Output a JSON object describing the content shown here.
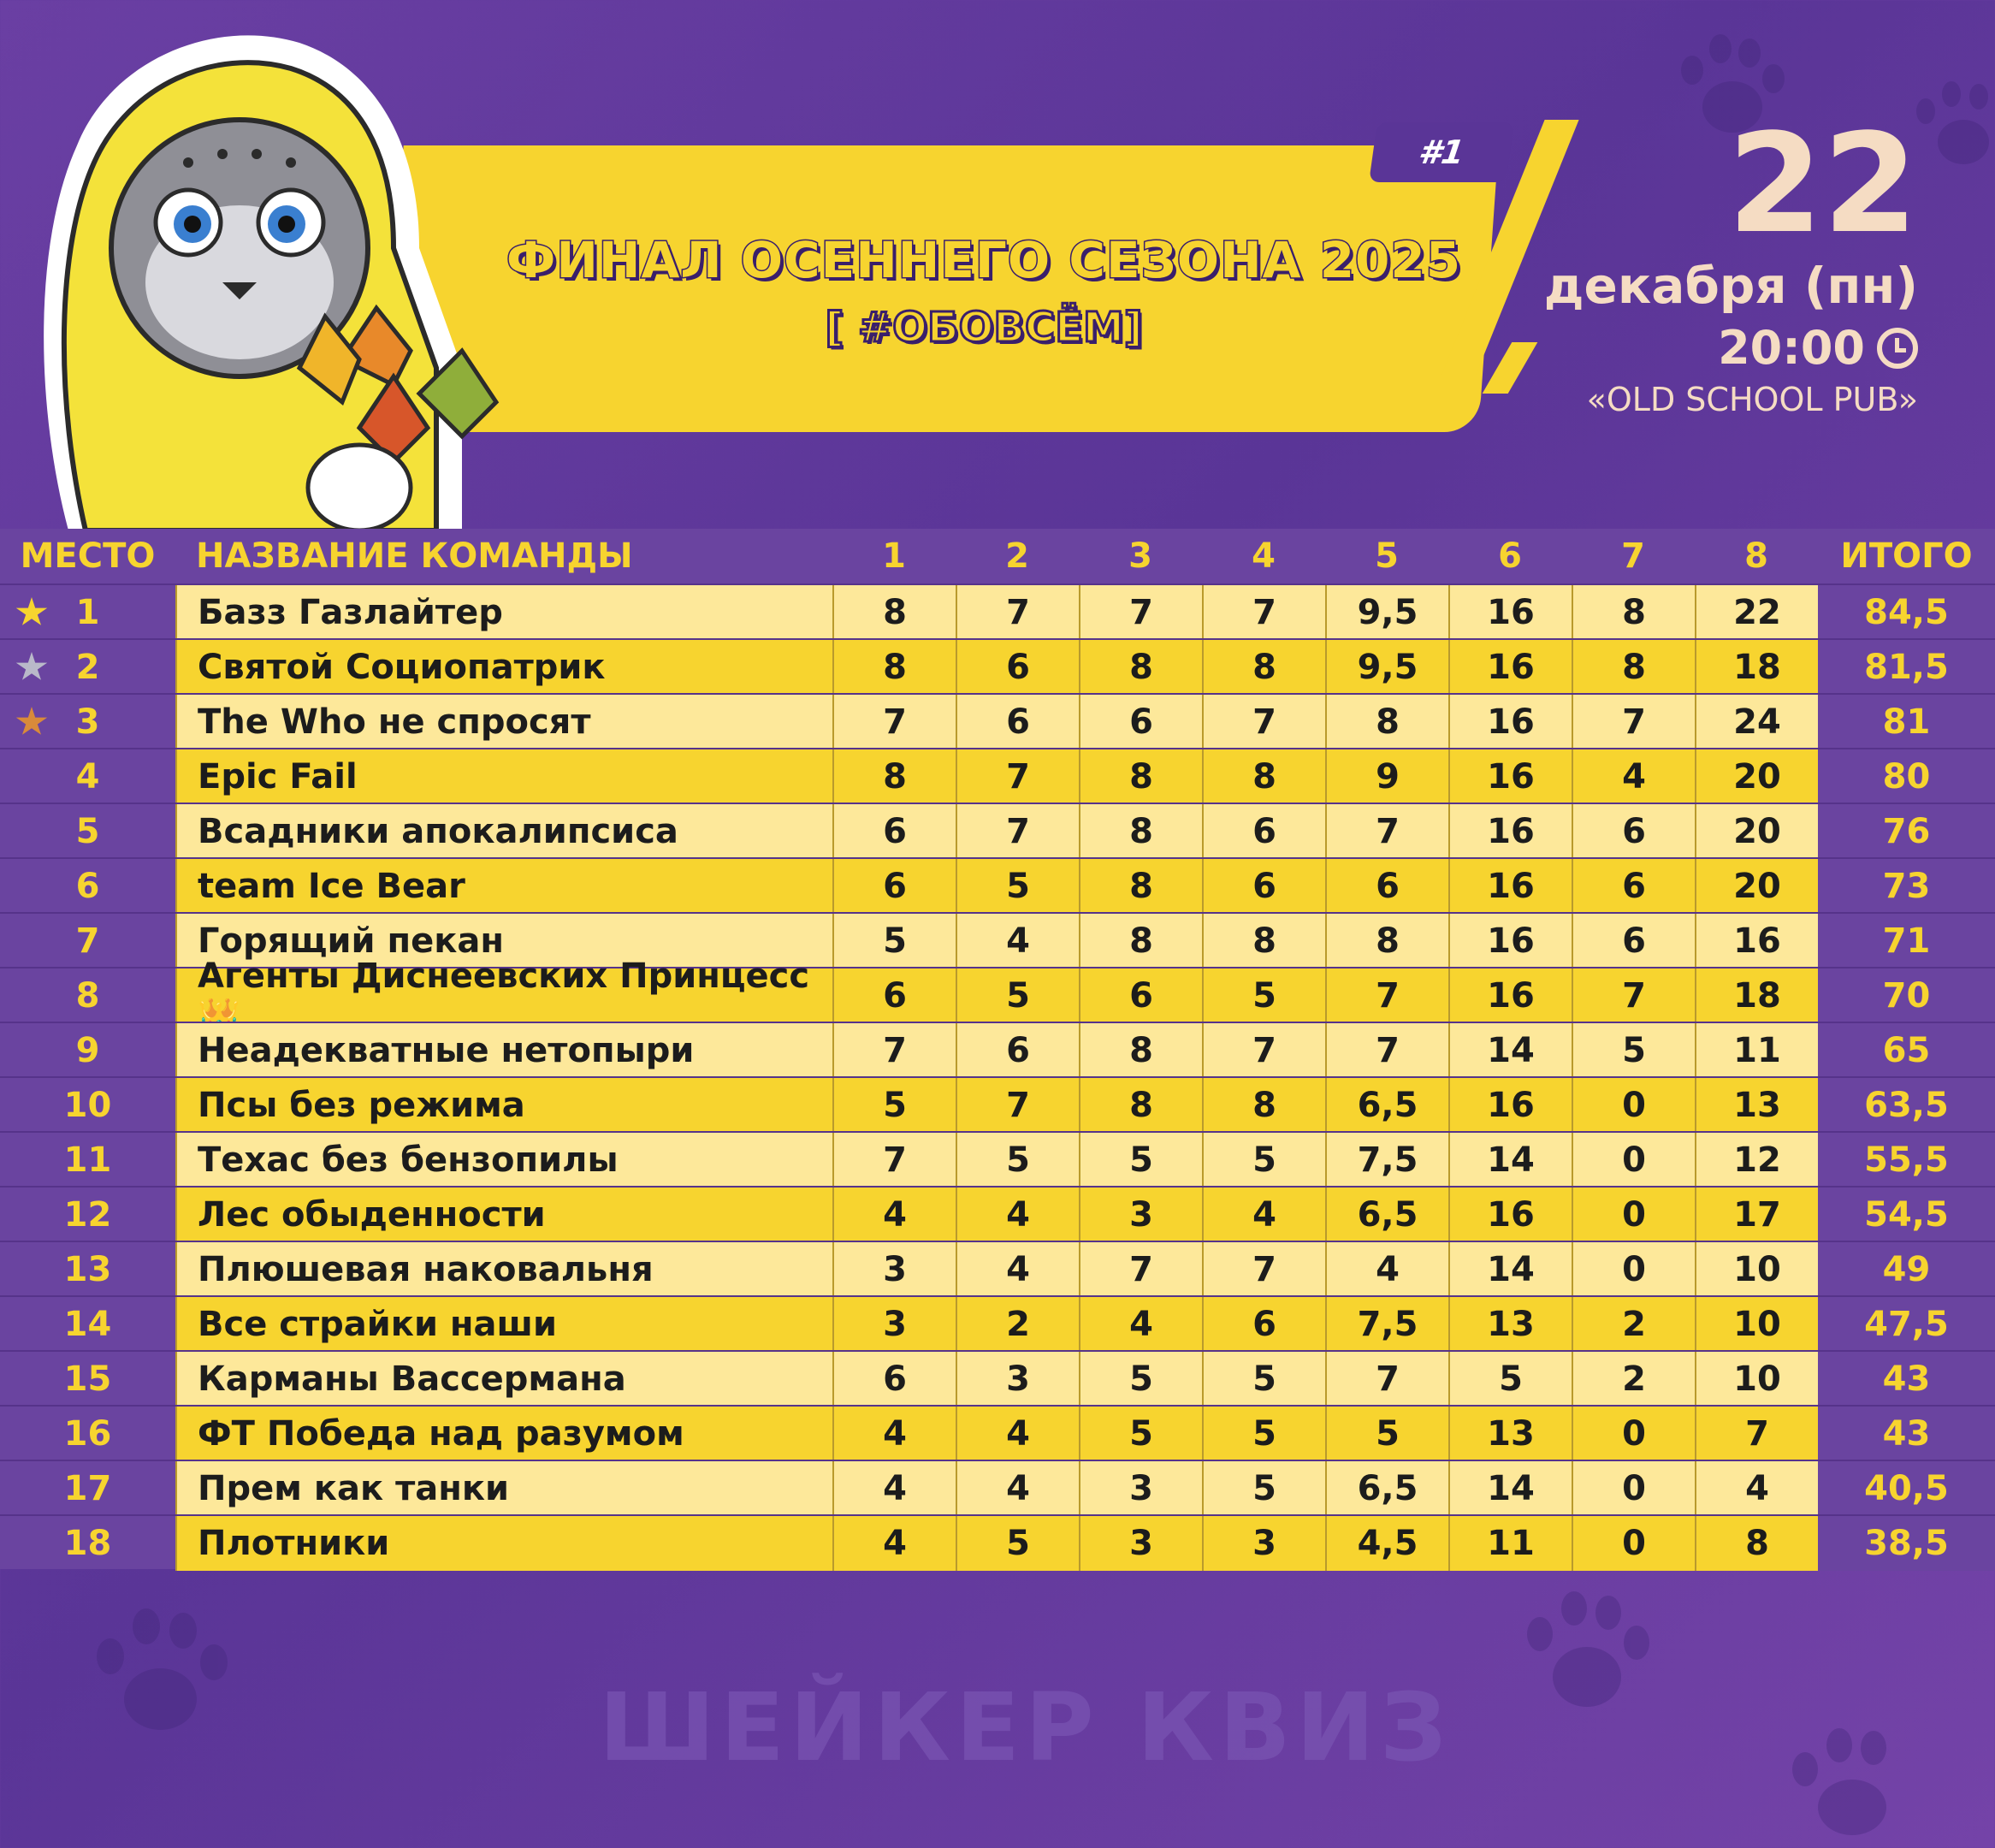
{
  "header": {
    "round_tag": "#1",
    "title": "ФИНАЛ ОСЕННЕГО СЕЗОНА 2025",
    "subtitle": "[ #ОБОВСЁМ]"
  },
  "event": {
    "day": "22",
    "month": "декабря (пн)",
    "time": "20:00",
    "venue": "«OLD SCHOOL PUB»"
  },
  "table": {
    "headers": {
      "place": "МЕСТО",
      "name": "НАЗВАНИЕ КОМАНДЫ",
      "rounds": [
        "1",
        "2",
        "3",
        "4",
        "5",
        "6",
        "7",
        "8"
      ],
      "total": "ИТОГО"
    },
    "rows": [
      {
        "place": "1",
        "name": "Базз Газлайтер",
        "scores": [
          "8",
          "7",
          "7",
          "7",
          "9,5",
          "16",
          "8",
          "22"
        ],
        "total": "84,5",
        "star": "gold"
      },
      {
        "place": "2",
        "name": "Святой Социопатрик",
        "scores": [
          "8",
          "6",
          "8",
          "8",
          "9,5",
          "16",
          "8",
          "18"
        ],
        "total": "81,5",
        "star": "silver"
      },
      {
        "place": "3",
        "name": "The Who не спросят",
        "scores": [
          "7",
          "6",
          "6",
          "7",
          "8",
          "16",
          "7",
          "24"
        ],
        "total": "81",
        "star": "bronze"
      },
      {
        "place": "4",
        "name": "Epic Fail",
        "scores": [
          "8",
          "7",
          "8",
          "8",
          "9",
          "16",
          "4",
          "20"
        ],
        "total": "80"
      },
      {
        "place": "5",
        "name": "Всадники апокалипсиса",
        "scores": [
          "6",
          "7",
          "8",
          "6",
          "7",
          "16",
          "6",
          "20"
        ],
        "total": "76"
      },
      {
        "place": "6",
        "name": "team Ice Bear",
        "scores": [
          "6",
          "5",
          "8",
          "6",
          "6",
          "16",
          "6",
          "20"
        ],
        "total": "73"
      },
      {
        "place": "7",
        "name": "Горящий пекан",
        "scores": [
          "5",
          "4",
          "8",
          "8",
          "8",
          "16",
          "6",
          "16"
        ],
        "total": "71"
      },
      {
        "place": "8",
        "name": "Агенты Диснеевских Принцесс 👑",
        "scores": [
          "6",
          "5",
          "6",
          "5",
          "7",
          "16",
          "7",
          "18"
        ],
        "total": "70"
      },
      {
        "place": "9",
        "name": "Неадекватные нетопыри",
        "scores": [
          "7",
          "6",
          "8",
          "7",
          "7",
          "14",
          "5",
          "11"
        ],
        "total": "65"
      },
      {
        "place": "10",
        "name": "Псы без режима",
        "scores": [
          "5",
          "7",
          "8",
          "8",
          "6,5",
          "16",
          "0",
          "13"
        ],
        "total": "63,5"
      },
      {
        "place": "11",
        "name": "Техас без бензопилы",
        "scores": [
          "7",
          "5",
          "5",
          "5",
          "7,5",
          "14",
          "0",
          "12"
        ],
        "total": "55,5"
      },
      {
        "place": "12",
        "name": "Лес обыденности",
        "scores": [
          "4",
          "4",
          "3",
          "4",
          "6,5",
          "16",
          "0",
          "17"
        ],
        "total": "54,5"
      },
      {
        "place": "13",
        "name": "Плюшевая наковальня",
        "scores": [
          "3",
          "4",
          "7",
          "7",
          "4",
          "14",
          "0",
          "10"
        ],
        "total": "49"
      },
      {
        "place": "14",
        "name": "Все страйки наши",
        "scores": [
          "3",
          "2",
          "4",
          "6",
          "7,5",
          "13",
          "2",
          "10"
        ],
        "total": "47,5"
      },
      {
        "place": "15",
        "name": "Карманы Вассермана",
        "scores": [
          "6",
          "3",
          "5",
          "5",
          "7",
          "5",
          "2",
          "10"
        ],
        "total": "43"
      },
      {
        "place": "16",
        "name": "ФТ Победа над разумом",
        "scores": [
          "4",
          "4",
          "5",
          "5",
          "5",
          "13",
          "0",
          "7"
        ],
        "total": "43"
      },
      {
        "place": "17",
        "name": "Прем как танки",
        "scores": [
          "4",
          "4",
          "3",
          "5",
          "6,5",
          "14",
          "0",
          "4"
        ],
        "total": "40,5"
      },
      {
        "place": "18",
        "name": "Плотники",
        "scores": [
          "4",
          "5",
          "3",
          "3",
          "4,5",
          "11",
          "0",
          "8"
        ],
        "total": "38,5"
      }
    ]
  },
  "footer": {
    "logo": "ШЕЙКЕР КВИЗ"
  },
  "colors": {
    "background": "#5a3597",
    "accent_yellow": "#f7d42f",
    "row_light": "#fde89a",
    "row_dark": "#f7d42f",
    "date_text": "#f5dcc3",
    "star_gold": "#f7d42f",
    "star_silver": "#b9b9c9",
    "star_bronze": "#d98a3a"
  }
}
